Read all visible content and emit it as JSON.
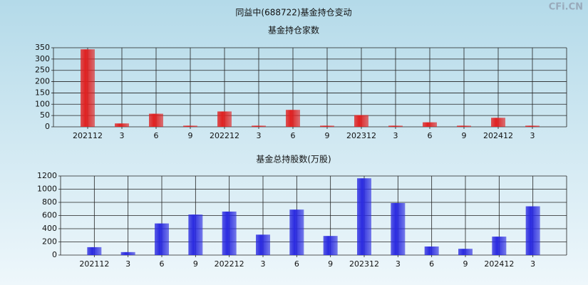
{
  "watermark": "CFi.CN",
  "chart_data": [
    {
      "type": "bar",
      "title": "同益中(688722)基金持仓变动",
      "subtitle": "基金持仓家数",
      "categories": [
        "202112",
        "3",
        "6",
        "9",
        "202212",
        "3",
        "6",
        "9",
        "202312",
        "3",
        "6",
        "9",
        "202412",
        "3"
      ],
      "values": [
        343,
        15,
        58,
        5,
        68,
        5,
        75,
        5,
        52,
        5,
        20,
        5,
        40,
        5
      ],
      "color": "#e02020",
      "ylim": [
        0,
        350
      ],
      "yticks": [
        0,
        50,
        100,
        150,
        200,
        250,
        300,
        350
      ],
      "grid": true
    },
    {
      "type": "bar",
      "subtitle": "基金总持股数(万股)",
      "categories": [
        "202112",
        "3",
        "6",
        "9",
        "202212",
        "3",
        "6",
        "9",
        "202312",
        "3",
        "6",
        "9",
        "202412",
        "3"
      ],
      "values": [
        120,
        45,
        480,
        615,
        660,
        310,
        690,
        290,
        1165,
        790,
        130,
        95,
        280,
        740
      ],
      "color": "#2a2ae0",
      "ylim": [
        0,
        1200
      ],
      "yticks": [
        0,
        200,
        400,
        600,
        800,
        1000,
        1200
      ],
      "grid": true
    }
  ]
}
